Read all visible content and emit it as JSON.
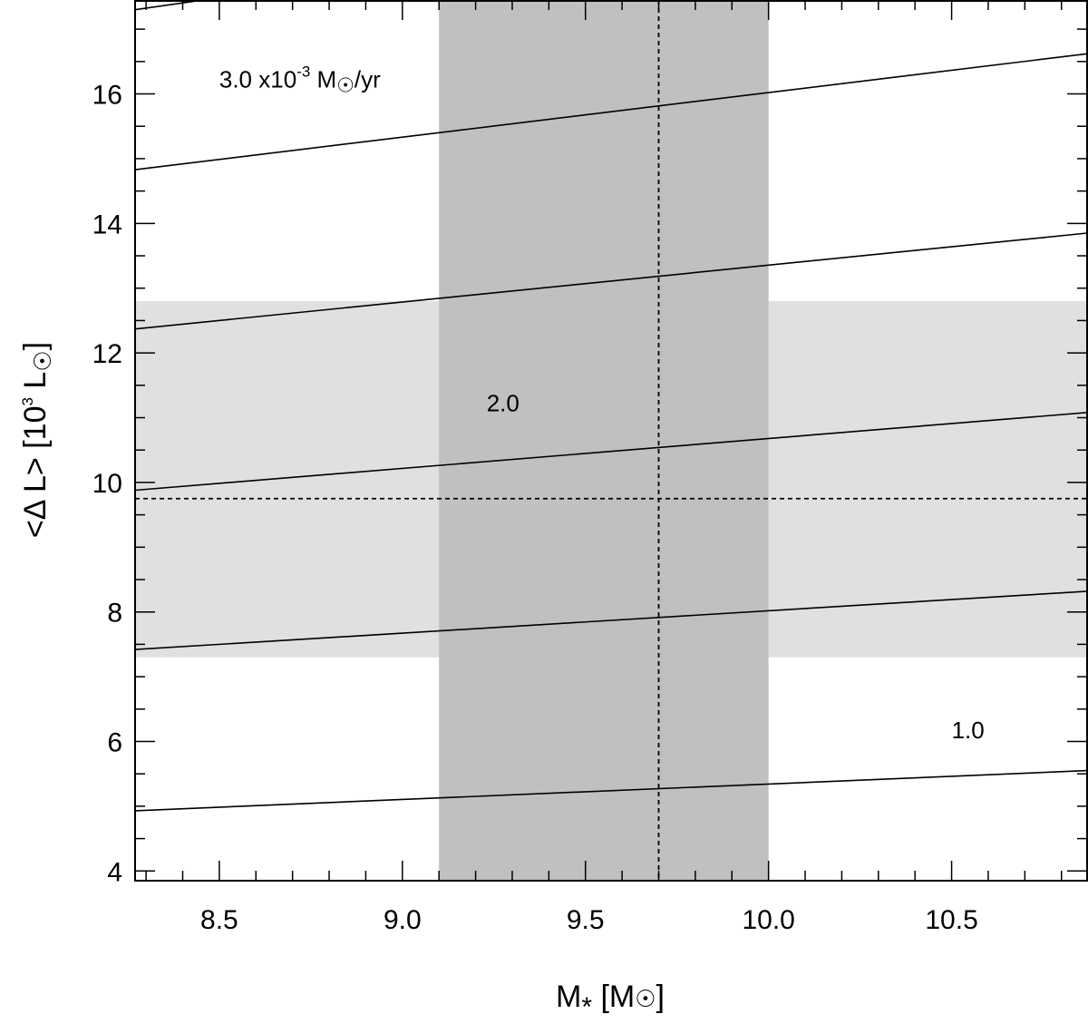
{
  "chart_data": {
    "type": "line",
    "title": "",
    "xlabel": {
      "main": "M",
      "sub": "*",
      "unit_open": " [M",
      "sun": "☉",
      "unit_close": "]"
    },
    "ylabel": {
      "main": "<Δ L> [10",
      "sup": "3",
      "unit": " L",
      "sun": "☉",
      "close": "]"
    },
    "xlim": [
      8.27,
      10.87
    ],
    "ylim": [
      3.85,
      17.45
    ],
    "x_ticks": [
      "8.5",
      "9.0",
      "9.5",
      "10.0",
      "10.5"
    ],
    "y_ticks": [
      "4",
      "6",
      "8",
      "10",
      "12",
      "14",
      "16"
    ],
    "x_minor_step": 0.1,
    "y_minor_step": 0.5,
    "grid": false,
    "bands": [
      {
        "orientation": "horizontal",
        "from": 7.3,
        "to": 12.8,
        "color": "#e0e0e0"
      },
      {
        "orientation": "vertical",
        "from": 9.1,
        "to": 10.0,
        "color": "#c0c0c0"
      }
    ],
    "reference_lines": [
      {
        "orientation": "vertical",
        "value": 9.7,
        "style": "dashed"
      },
      {
        "orientation": "horizontal",
        "value": 9.75,
        "style": "dashed"
      }
    ],
    "series": [
      {
        "x": [
          8.27,
          10.87
        ],
        "y": [
          4.93,
          5.55
        ]
      },
      {
        "x": [
          8.27,
          10.87
        ],
        "y": [
          7.42,
          8.32
        ]
      },
      {
        "x": [
          8.27,
          10.87
        ],
        "y": [
          9.88,
          11.08
        ]
      },
      {
        "x": [
          8.27,
          10.87
        ],
        "y": [
          12.37,
          13.85
        ]
      },
      {
        "x": [
          8.27,
          10.87
        ],
        "y": [
          14.83,
          16.62
        ]
      },
      {
        "x": [
          8.27,
          10.87
        ],
        "y": [
          17.3,
          19.4
        ]
      }
    ],
    "annotations": [
      {
        "x": 8.5,
        "y": 16.1,
        "parts": [
          "3.0 x10",
          "-3",
          " M",
          "☉",
          "/yr"
        ]
      },
      {
        "x": 9.23,
        "y": 11.1,
        "parts": [
          "2.0"
        ]
      },
      {
        "x": 10.5,
        "y": 6.05,
        "parts": [
          "1.0"
        ]
      }
    ],
    "colors": {
      "axes": "#000000",
      "line": "#000000",
      "light_band": "#e0e0e0",
      "dark_band": "#c0c0c0"
    }
  }
}
